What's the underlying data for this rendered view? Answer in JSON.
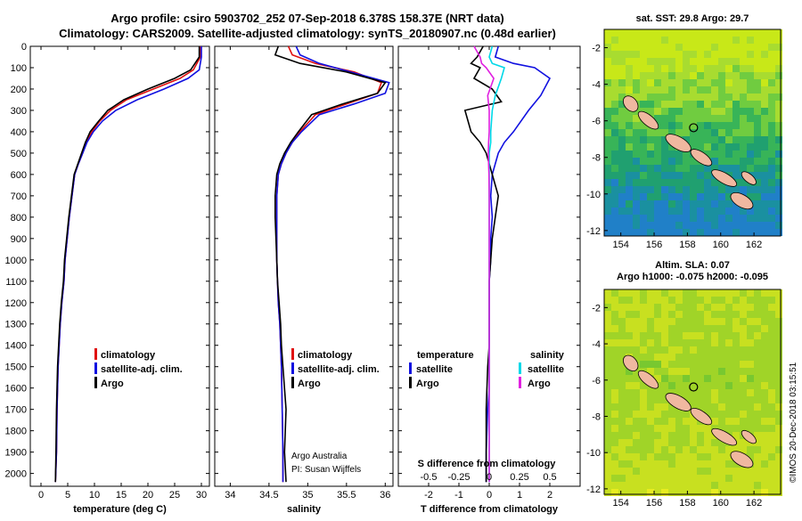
{
  "header": {
    "title_line1": "Argo profile: csiro 5903702_252 07-Sep-2018 6.378S 158.37E (NRT data)",
    "title_line2": "Climatology: CARS2009. Satellite-adjusted climatology: synTS_20180907.nc (0.48d earlier)"
  },
  "credit": {
    "line1": "Argo Australia",
    "line2": "PI: Susan Wijffels"
  },
  "stamp": "©IMOS 20-Dec-2018 03:15:51",
  "colors": {
    "climatology": "#e01010",
    "satellite": "#1010e0",
    "argo": "#000000",
    "sat_sal": "#00d8e8",
    "argo_sal": "#e020e0"
  },
  "chart_data": [
    {
      "type": "line",
      "title": "",
      "xlabel": "temperature (deg C)",
      "ylabel": "",
      "xlim": [
        -2,
        31.5
      ],
      "ylim": [
        2060,
        0
      ],
      "xticks": [
        0,
        5,
        10,
        15,
        20,
        25,
        30
      ],
      "yticks": [
        0,
        100,
        200,
        300,
        400,
        500,
        600,
        700,
        800,
        900,
        1000,
        1100,
        1200,
        1300,
        1400,
        1500,
        1600,
        1700,
        1800,
        1900,
        2000
      ],
      "legend_position": "center-right",
      "legend": [
        "climatology",
        "satellite-adj. clim.",
        "Argo"
      ],
      "series": [
        {
          "name": "climatology",
          "color": "#e01010",
          "x": [
            29.8,
            29.8,
            28.5,
            26,
            21,
            16,
            13,
            11,
            9.5,
            8.5,
            7.8,
            7,
            6.3,
            5.8,
            5.3,
            4.9,
            4.5,
            4.3,
            3.9,
            3.6,
            3.4,
            3.2,
            3,
            2.9,
            2.7
          ],
          "y": [
            0,
            50,
            110,
            150,
            200,
            250,
            300,
            350,
            400,
            450,
            500,
            550,
            600,
            700,
            800,
            900,
            1000,
            1100,
            1200,
            1300,
            1400,
            1500,
            1700,
            1900,
            2040
          ]
        },
        {
          "name": "satellite-adj. clim.",
          "color": "#1010e0",
          "x": [
            30,
            30,
            29.6,
            27.5,
            23,
            18,
            14,
            11.5,
            9.8,
            8.6,
            7.8,
            7,
            6.3,
            5.8,
            5.3,
            4.9,
            4.5,
            4.3,
            3.9,
            3.6,
            3.4,
            3.2,
            3,
            2.9,
            2.7
          ],
          "y": [
            0,
            50,
            110,
            150,
            200,
            250,
            300,
            350,
            400,
            450,
            500,
            550,
            600,
            700,
            800,
            900,
            1000,
            1100,
            1200,
            1300,
            1400,
            1500,
            1700,
            1900,
            2040
          ]
        },
        {
          "name": "Argo",
          "color": "#000000",
          "x": [
            29.6,
            29.6,
            28,
            25,
            20,
            15.5,
            12.5,
            10.8,
            9.2,
            8.3,
            7.6,
            6.9,
            6.2,
            5.7,
            5.2,
            4.8,
            4.4,
            4.2,
            3.8,
            3.5,
            3.3,
            3.1,
            2.9,
            2.8,
            2.7
          ],
          "y": [
            0,
            50,
            110,
            150,
            200,
            250,
            300,
            350,
            400,
            450,
            500,
            550,
            600,
            700,
            800,
            900,
            1000,
            1100,
            1200,
            1300,
            1400,
            1500,
            1700,
            1900,
            2040
          ]
        }
      ]
    },
    {
      "type": "line",
      "title": "",
      "xlabel": "salinity",
      "ylabel": "",
      "xlim": [
        33.8,
        36.1
      ],
      "ylim": [
        2060,
        0
      ],
      "xticks": [
        34,
        34.5,
        35,
        35.5,
        36
      ],
      "legend_position": "center-right",
      "legend": [
        "climatology",
        "satellite-adj. clim.",
        "Argo"
      ],
      "series": [
        {
          "name": "climatology",
          "color": "#e01010",
          "x": [
            34.75,
            34.8,
            35.1,
            35.6,
            35.95,
            35.9,
            35.5,
            35.1,
            34.9,
            34.8,
            34.72,
            34.66,
            34.62,
            34.6,
            34.6,
            34.6,
            34.6,
            34.61,
            34.62,
            34.64,
            34.65,
            34.66,
            34.67,
            34.68,
            34.68
          ],
          "y": [
            0,
            40,
            80,
            120,
            170,
            220,
            270,
            320,
            400,
            450,
            500,
            550,
            600,
            700,
            800,
            900,
            1000,
            1100,
            1200,
            1300,
            1400,
            1500,
            1700,
            1900,
            2040
          ]
        },
        {
          "name": "satellite-adj. clim.",
          "color": "#1010e0",
          "x": [
            34.85,
            34.9,
            35.15,
            35.55,
            36.05,
            36,
            35.6,
            35.15,
            34.92,
            34.8,
            34.72,
            34.66,
            34.62,
            34.6,
            34.6,
            34.6,
            34.6,
            34.61,
            34.62,
            34.64,
            34.65,
            34.66,
            34.67,
            34.68,
            34.68
          ],
          "y": [
            0,
            40,
            80,
            120,
            170,
            220,
            270,
            320,
            400,
            450,
            500,
            550,
            600,
            700,
            800,
            900,
            1000,
            1100,
            1200,
            1300,
            1400,
            1500,
            1700,
            1900,
            2040
          ]
        },
        {
          "name": "Argo",
          "color": "#000000",
          "x": [
            34.62,
            34.58,
            34.9,
            35.5,
            36,
            35.9,
            35.45,
            35.05,
            34.88,
            34.78,
            34.7,
            34.64,
            34.6,
            34.58,
            34.58,
            34.59,
            34.6,
            34.61,
            34.63,
            34.65,
            34.66,
            34.68,
            34.72,
            34.7,
            34.72
          ],
          "y": [
            0,
            40,
            80,
            120,
            170,
            220,
            270,
            320,
            400,
            450,
            500,
            550,
            600,
            700,
            800,
            900,
            1000,
            1100,
            1200,
            1300,
            1400,
            1500,
            1700,
            1900,
            2040
          ]
        }
      ]
    },
    {
      "type": "line",
      "title": "",
      "xlabel": "T difference from climatology",
      "xlabel_top": "S difference from climatology",
      "ylabel": "",
      "xlim": [
        -3,
        3
      ],
      "ylim": [
        2060,
        0
      ],
      "xticks": [
        -2,
        -1,
        0,
        1,
        2
      ],
      "xticks_top": [
        "-0.5",
        "-0.25",
        "0",
        "0.25",
        "0.5"
      ],
      "legend_position": "center",
      "legend_left_header": "temperature",
      "legend_right_header": "salinity",
      "legend_left": [
        "satellite",
        "Argo"
      ],
      "legend_right": [
        "satellite",
        "Argo"
      ],
      "series": [
        {
          "name": "satellite",
          "color": "#1010e0",
          "x": [
            0.3,
            0.2,
            0.8,
            1.5,
            2.0,
            1.7,
            1.3,
            0.8,
            0.5,
            0.3,
            0.2,
            0.1,
            0.05,
            0.1,
            0.05,
            0.05,
            0,
            0,
            0,
            0,
            0,
            0,
            -0.05,
            -0.1,
            -0.1
          ],
          "y": [
            0,
            50,
            80,
            100,
            150,
            230,
            300,
            400,
            450,
            500,
            550,
            600,
            700,
            800,
            900,
            1000,
            1100,
            1200,
            1300,
            1400,
            1500,
            1600,
            1700,
            1900,
            2040
          ]
        },
        {
          "name": "Argo",
          "color": "#000000",
          "x": [
            -0.2,
            -0.4,
            -0.6,
            -0.3,
            -0.5,
            0.1,
            0.4,
            -0.8,
            -0.6,
            -0.3,
            -0.1,
            0.0,
            0.1,
            0.3,
            0.2,
            0.1,
            0.05,
            0,
            0,
            0,
            0,
            -0.05,
            -0.1,
            -0.1,
            -0.1
          ],
          "y": [
            0,
            50,
            80,
            100,
            150,
            200,
            260,
            300,
            400,
            450,
            500,
            550,
            600,
            700,
            800,
            900,
            1000,
            1100,
            1200,
            1300,
            1400,
            1500,
            1700,
            1900,
            2040
          ]
        },
        {
          "name": "satellite",
          "color": "#00d8e8",
          "x": [
            0.1,
            0.0,
            0.1,
            0.5,
            0.4,
            0.2,
            0.1,
            0.05,
            0.05,
            0.0,
            0.0,
            0.0,
            0.0,
            0.0,
            0.0,
            0.0,
            0.0,
            0.0,
            0.0,
            0.0,
            0.0,
            0.0,
            0.0,
            0.0,
            0.0
          ],
          "y": [
            0,
            50,
            80,
            100,
            150,
            230,
            300,
            400,
            450,
            500,
            550,
            600,
            700,
            800,
            900,
            1000,
            1100,
            1200,
            1300,
            1400,
            1500,
            1600,
            1700,
            1900,
            2040
          ]
        },
        {
          "name": "Argo",
          "color": "#e020e0",
          "x": [
            -0.5,
            -0.3,
            -0.25,
            -0.1,
            0.15,
            -0.05,
            0.0,
            0.0,
            -0.02,
            -0.03,
            -0.02,
            -0.01,
            0,
            0,
            0,
            0,
            0,
            0,
            0,
            0,
            0,
            0,
            0,
            0,
            0
          ],
          "y": [
            0,
            50,
            80,
            100,
            150,
            230,
            300,
            400,
            450,
            500,
            550,
            600,
            700,
            800,
            900,
            1000,
            1100,
            1200,
            1300,
            1400,
            1500,
            1600,
            1700,
            1900,
            2040
          ]
        }
      ]
    }
  ],
  "maps": [
    {
      "title": "sat. SST: 29.8 Argo: 29.7",
      "xticks": [
        "154",
        "156",
        "158",
        "160",
        "162"
      ],
      "yticks": [
        "-2",
        "-4",
        "-6",
        "-8",
        "-10",
        "-12"
      ]
    },
    {
      "title_line1": "Altim. SLA: 0.07",
      "title_line2": "Argo h1000: -0.075 h2000: -0.095",
      "xticks": [
        "154",
        "156",
        "158",
        "160",
        "162"
      ],
      "yticks": [
        "-2",
        "-4",
        "-6",
        "-8",
        "-10",
        "-12"
      ]
    }
  ]
}
